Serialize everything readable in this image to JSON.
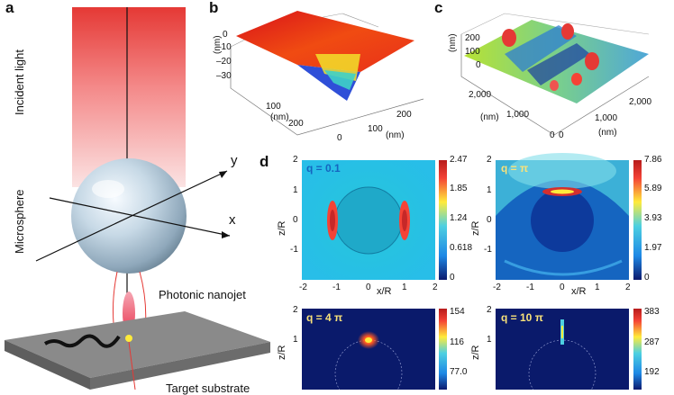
{
  "panels": {
    "a": {
      "letter": "a",
      "incident_light": "Incident light",
      "microsphere": "Microsphere",
      "photonic_nanojet": "Photonic nanojet",
      "target_substrate": "Target substrate",
      "axis_x": "x",
      "axis_y": "y"
    },
    "b": {
      "letter": "b",
      "z_unit": "(nm)",
      "z_ticks": [
        "0",
        "–10",
        "–20",
        "–30"
      ],
      "x_ticks": [
        "0",
        "100",
        "200"
      ],
      "x_unit": "(nm)",
      "y_ticks": [
        "100",
        "200"
      ],
      "y_unit": "(nm)"
    },
    "c": {
      "letter": "c",
      "z_unit": "(nm)",
      "z_ticks": [
        "200",
        "100",
        "0"
      ],
      "x_ticks": [
        "2,000",
        "1,000",
        "0"
      ],
      "x_unit": "(nm)",
      "y_ticks": [
        "0",
        "1,000",
        "2,000"
      ],
      "y_unit": "(nm)"
    },
    "d": {
      "letter": "d",
      "z_axis_label": "z/R",
      "x_axis_label": "x/R",
      "x_ticks": [
        "-2",
        "-1",
        "0",
        "1",
        "2"
      ],
      "y_ticks": [
        "2",
        "1",
        "0",
        "-1"
      ],
      "maps": [
        {
          "q": "q = 0.1",
          "colorbar": [
            "2.47",
            "1.85",
            "1.24",
            "0.618",
            "0"
          ]
        },
        {
          "q": "q = π",
          "colorbar": [
            "7.86",
            "5.89",
            "3.93",
            "1.97",
            "0"
          ]
        },
        {
          "q": "q = 4 π",
          "colorbar": [
            "154",
            "116",
            "77.0"
          ]
        },
        {
          "q": "q = 10 π",
          "colorbar": [
            "383",
            "287",
            "192"
          ]
        }
      ]
    }
  },
  "colors": {
    "jet_red": "#d7191c",
    "jet_blue": "#1a237e",
    "substrate": "#7a7a7a"
  }
}
